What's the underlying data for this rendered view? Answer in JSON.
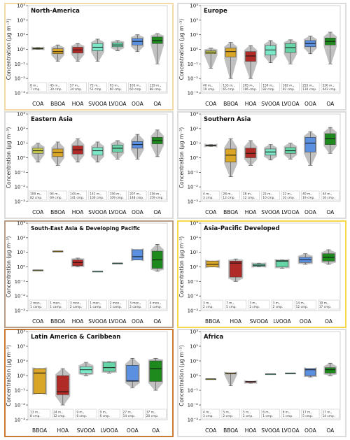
{
  "chart_data": [
    {
      "type": "box",
      "title": "North-America",
      "frame_color": "#f2d9a6",
      "ylabel": "Concentration (μg m⁻³)",
      "yscale": "log",
      "ylim": [
        0.001,
        1000
      ],
      "yticks": [
        "10⁻³",
        "10⁻²",
        "10⁻¹",
        "10⁰",
        "10¹",
        "10²",
        "10³"
      ],
      "categories": [
        "COA",
        "BBOA",
        "HOA",
        "SVOOA",
        "LVOOA",
        "OOA",
        "OA"
      ],
      "boxes": [
        {
          "cat": "COA",
          "min": 1.0,
          "q1": 1.05,
          "median": 1.1,
          "q3": 1.25,
          "max": 1.35,
          "note1": "8 m.,",
          "note2": "7 cmp."
        },
        {
          "cat": "BBOA",
          "min": 0.15,
          "q1": 0.5,
          "median": 0.7,
          "q3": 1.1,
          "max": 2.0,
          "note1": "45 m.,",
          "note2": "30 cmp."
        },
        {
          "cat": "HOA",
          "min": 0.15,
          "q1": 0.55,
          "median": 0.9,
          "q3": 1.4,
          "max": 2.5,
          "note1": "57 m.,",
          "note2": "34 cmp."
        },
        {
          "cat": "SVOOA",
          "min": 0.15,
          "q1": 0.8,
          "median": 1.4,
          "q3": 2.5,
          "max": 5.0,
          "note1": "72 m.,",
          "note2": "51 cmp."
        },
        {
          "cat": "LVOOA",
          "min": 0.8,
          "q1": 1.5,
          "median": 2.0,
          "q3": 2.8,
          "max": 4.0,
          "note1": "93 m.,",
          "note2": "60 cmp."
        },
        {
          "cat": "OOA",
          "min": 0.7,
          "q1": 2.0,
          "median": 3.5,
          "q3": 5.5,
          "max": 10.0,
          "note1": "103 m.,",
          "note2": "60 cmp."
        },
        {
          "cat": "OA",
          "min": 0.1,
          "q1": 2.5,
          "median": 4.0,
          "q3": 7.0,
          "max": 12.0,
          "note1": "119 m.,",
          "note2": "88 cmp."
        }
      ]
    },
    {
      "type": "box",
      "title": "Europe",
      "frame_color": "#dcdcdc",
      "ylabel": "Concentration (μg m⁻³)",
      "yscale": "log",
      "ylim": [
        0.001,
        1000
      ],
      "yticks": [
        "10⁻³",
        "10⁻²",
        "10⁻¹",
        "10⁰",
        "10¹",
        "10²",
        "10³"
      ],
      "categories": [
        "COA",
        "BBOA",
        "HOA",
        "SVOOA",
        "LVOOA",
        "OOA",
        "OA"
      ],
      "boxes": [
        {
          "cat": "COA",
          "min": 0.05,
          "q1": 0.5,
          "median": 0.65,
          "q3": 0.8,
          "max": 1.2,
          "note1": "40 m.,",
          "note2": "19 cmp."
        },
        {
          "cat": "BBOA",
          "min": 0.01,
          "q1": 0.3,
          "median": 0.7,
          "q3": 1.2,
          "max": 3.0,
          "note1": "133 m.,",
          "note2": "65 cmp."
        },
        {
          "cat": "HOA",
          "min": 0.01,
          "q1": 0.15,
          "median": 0.35,
          "q3": 0.7,
          "max": 1.8,
          "note1": "205 m.,",
          "note2": "106 cmp."
        },
        {
          "cat": "SVOOA",
          "min": 0.12,
          "q1": 0.4,
          "median": 0.9,
          "q3": 1.8,
          "max": 4.0,
          "note1": "159 m.,",
          "note2": "82 cmp."
        },
        {
          "cat": "LVOOA",
          "min": 0.1,
          "q1": 0.6,
          "median": 1.3,
          "q3": 2.5,
          "max": 4.5,
          "note1": "182 m.,",
          "note2": "92 cmp."
        },
        {
          "cat": "OOA",
          "min": 0.5,
          "q1": 1.5,
          "median": 2.5,
          "q3": 4.0,
          "max": 8.0,
          "note1": "255 m.,",
          "note2": "130 cmp."
        },
        {
          "cat": "OA",
          "min": 0.1,
          "q1": 2.0,
          "median": 3.5,
          "q3": 6.0,
          "max": 15.0,
          "note1": "526 m.,",
          "note2": "443 cmp."
        }
      ]
    },
    {
      "type": "box",
      "title": "Eastern Asia",
      "frame_color": "#dcdcdc",
      "ylabel": "Concentration (μg m⁻³)",
      "yscale": "log",
      "ylim": [
        0.001,
        1000
      ],
      "yticks": [
        "10⁻³",
        "10⁻²",
        "10⁻¹",
        "10⁰",
        "10¹",
        "10²",
        "10³"
      ],
      "categories": [
        "COA",
        "BBOA",
        "HOA",
        "SVOOA",
        "LVOOA",
        "OOA",
        "OA"
      ],
      "boxes": [
        {
          "cat": "COA",
          "min": 0.5,
          "q1": 2.0,
          "median": 3.0,
          "q3": 4.5,
          "max": 10.0,
          "note1": "109 m.,",
          "note2": "82 cmp."
        },
        {
          "cat": "BBOA",
          "min": 0.3,
          "q1": 1.2,
          "median": 2.3,
          "q3": 4.0,
          "max": 12.0,
          "note1": "94 m.,",
          "note2": "69 cmp."
        },
        {
          "cat": "HOA",
          "min": 0.5,
          "q1": 1.8,
          "median": 3.5,
          "q3": 6.5,
          "max": 20.0,
          "note1": "143 m.,",
          "note2": "141 cmp."
        },
        {
          "cat": "SVOOA",
          "min": 0.5,
          "q1": 1.5,
          "median": 3.0,
          "q3": 5.0,
          "max": 12.0,
          "note1": "141 m.,",
          "note2": "100 cmp."
        },
        {
          "cat": "LVOOA",
          "min": 0.8,
          "q1": 2.5,
          "median": 4.5,
          "q3": 7.5,
          "max": 15.0,
          "note1": "156 m.,",
          "note2": "109 cmp."
        },
        {
          "cat": "OOA",
          "min": 0.8,
          "q1": 4.5,
          "median": 8.0,
          "q3": 13.0,
          "max": 40.0,
          "note1": "207 m.,",
          "note2": "148 cmp."
        },
        {
          "cat": "OA",
          "min": 1.2,
          "q1": 9.0,
          "median": 15.0,
          "q3": 25.0,
          "max": 80.0,
          "note1": "216 m.,",
          "note2": "159 cmp."
        }
      ]
    },
    {
      "type": "box",
      "title": "Southern Asia",
      "frame_color": "#dcdcdc",
      "ylabel": "Concentration (μg m⁻³)",
      "yscale": "log",
      "ylim": [
        0.001,
        1000
      ],
      "yticks": [
        "10⁻³",
        "10⁻²",
        "10⁻¹",
        "10⁰",
        "10¹",
        "10²",
        "10³"
      ],
      "categories": [
        "COA",
        "BBOA",
        "HOA",
        "SVOOA",
        "LVOOA",
        "OOA",
        "OA"
      ],
      "boxes": [
        {
          "cat": "COA",
          "min": 6.0,
          "q1": 6.5,
          "median": 7.0,
          "q3": 7.5,
          "max": 8.0,
          "note1": "4 m.,",
          "note2": "3 cmp."
        },
        {
          "cat": "BBOA",
          "min": 0.05,
          "q1": 0.5,
          "median": 1.5,
          "q3": 4.0,
          "max": 20.0,
          "note1": "28 m.,",
          "note2": "12 cmp."
        },
        {
          "cat": "HOA",
          "min": 0.3,
          "q1": 1.0,
          "median": 2.0,
          "q3": 4.5,
          "max": 15.0,
          "note1": "28 m.,",
          "note2": "12 cmp."
        },
        {
          "cat": "SVOOA",
          "min": 0.7,
          "q1": 1.5,
          "median": 2.5,
          "q3": 4.0,
          "max": 8.0,
          "note1": "22 m.,",
          "note2": "10 cmp."
        },
        {
          "cat": "LVOOA",
          "min": 0.8,
          "q1": 2.0,
          "median": 3.0,
          "q3": 5.0,
          "max": 10.0,
          "note1": "22 m.,",
          "note2": "10 cmp."
        },
        {
          "cat": "OOA",
          "min": 0.3,
          "q1": 2.5,
          "median": 10.0,
          "q3": 25.0,
          "max": 60.0,
          "note1": "40 m.,",
          "note2": "19 cmp."
        },
        {
          "cat": "OA",
          "min": 2.0,
          "q1": 8.0,
          "median": 20.0,
          "q3": 45.0,
          "max": 120.0,
          "note1": "44 m.,",
          "note2": "16 cmp."
        }
      ]
    },
    {
      "type": "box",
      "title": "South-East Asia & Developing Pacific",
      "frame_color": "#b89e88",
      "ylabel": "Concentration (μg m⁻³)",
      "yscale": "log",
      "ylim": [
        0.001,
        1000
      ],
      "yticks": [
        "10⁻³",
        "10⁻²",
        "10⁻¹",
        "10⁰",
        "10¹",
        "10²",
        "10³"
      ],
      "categories": [
        "COA",
        "BBOA",
        "HOA",
        "SVOOA",
        "LVOOA",
        "OOA",
        "OA"
      ],
      "boxes": [
        {
          "cat": "COA",
          "min": 0.6,
          "q1": 0.6,
          "median": 0.6,
          "q3": 0.6,
          "max": 0.6,
          "note1": "2 mon.,",
          "note2": "1 camp."
        },
        {
          "cat": "BBOA",
          "min": 12.0,
          "q1": 12.0,
          "median": 12.0,
          "q3": 12.0,
          "max": 12.0,
          "note1": "1 mon.,",
          "note2": "1 camp."
        },
        {
          "cat": "HOA",
          "min": 1.0,
          "q1": 1.2,
          "median": 2.0,
          "q3": 3.0,
          "max": 4.0,
          "note1": "3 mon.,",
          "note2": "2 camp."
        },
        {
          "cat": "SVOOA",
          "min": 0.5,
          "q1": 0.5,
          "median": 0.5,
          "q3": 0.5,
          "max": 0.5,
          "note1": "1 mon.,",
          "note2": "1 camp."
        },
        {
          "cat": "LVOOA",
          "min": 1.8,
          "q1": 1.8,
          "median": 1.8,
          "q3": 1.8,
          "max": 1.8,
          "note1": "2 mon.,",
          "note2": "1 camp."
        },
        {
          "cat": "OOA",
          "min": 3.0,
          "q1": 3.0,
          "median": 5.0,
          "q3": 15.0,
          "max": 15.0,
          "note1": "3 mon.,",
          "note2": "2 camp."
        },
        {
          "cat": "OA",
          "min": 0.5,
          "q1": 0.8,
          "median": 3.0,
          "q3": 12.0,
          "max": 35.0,
          "note1": "4 mon.,",
          "note2": "3 camp."
        }
      ]
    },
    {
      "type": "box",
      "title": "Asia-Pacific Developed",
      "frame_color": "#f5d94a",
      "ylabel": "Concentration (μg m⁻³)",
      "yscale": "log",
      "ylim": [
        0.001,
        1000
      ],
      "yticks": [
        "10⁻³",
        "10⁻²",
        "10⁻¹",
        "10⁰",
        "10¹",
        "10²",
        "10³"
      ],
      "categories": [
        "BBOA",
        "HOA",
        "SVOOA",
        "LVOOA",
        "OOA",
        "OA"
      ],
      "boxes": [
        {
          "cat": "BBOA",
          "min": 1.0,
          "q1": 1.0,
          "median": 1.5,
          "q3": 2.5,
          "max": 2.5,
          "note1": "3 m.,",
          "note2": "2 cmp."
        },
        {
          "cat": "HOA",
          "min": 0.1,
          "q1": 0.2,
          "median": 1.8,
          "q3": 2.5,
          "max": 3.5,
          "note1": "7 m.,",
          "note2": "5 cmp."
        },
        {
          "cat": "SVOOA",
          "min": 1.0,
          "q1": 1.1,
          "median": 1.3,
          "q3": 1.6,
          "max": 1.8,
          "note1": "3 m.,",
          "note2": "2 cmp."
        },
        {
          "cat": "LVOOA",
          "min": 0.8,
          "q1": 1.0,
          "median": 2.5,
          "q3": 2.8,
          "max": 3.0,
          "note1": "3 m.,",
          "note2": "2 cmp."
        },
        {
          "cat": "OOA",
          "min": 1.5,
          "q1": 2.0,
          "median": 3.0,
          "q3": 4.5,
          "max": 8.0,
          "note1": "14 m.,",
          "note2": "12 cmp."
        },
        {
          "cat": "OA",
          "min": 1.5,
          "q1": 2.5,
          "median": 4.5,
          "q3": 8.0,
          "max": 15.0,
          "note1": "19 m.,",
          "note2": "17 cmp."
        }
      ]
    },
    {
      "type": "box",
      "title": "Latin America & Caribbean",
      "frame_color": "#c97a35",
      "ylabel": "Concentration (μg m⁻³)",
      "yscale": "log",
      "ylim": [
        0.001,
        1000
      ],
      "yticks": [
        "10⁻³",
        "10⁻²",
        "10⁻¹",
        "10⁰",
        "10¹",
        "10²",
        "10³"
      ],
      "categories": [
        "BBOA",
        "HOA",
        "SVOOA",
        "LVOOA",
        "OOA",
        "OA"
      ],
      "boxes": [
        {
          "cat": "BBOA",
          "min": 0.06,
          "q1": 0.06,
          "median": 1.5,
          "q3": 3.0,
          "max": 3.0,
          "note1": "13 m.,",
          "note2": "8 cmp."
        },
        {
          "cat": "HOA",
          "min": 0.01,
          "q1": 0.05,
          "median": 0.08,
          "q3": 1.0,
          "max": 3.0,
          "note1": "24 m.,",
          "note2": "12 cmp."
        },
        {
          "cat": "SVOOA",
          "min": 1.0,
          "q1": 1.5,
          "median": 2.5,
          "q3": 4.0,
          "max": 8.0,
          "note1": "9 m.,",
          "note2": "6 cmp."
        },
        {
          "cat": "LVOOA",
          "min": 1.5,
          "q1": 2.0,
          "median": 3.5,
          "q3": 8.0,
          "max": 9.0,
          "note1": "9 m.,",
          "note2": "6 cmp."
        },
        {
          "cat": "OOA",
          "min": 0.15,
          "q1": 0.4,
          "median": 0.45,
          "q3": 5.0,
          "max": 15.0,
          "note1": "27 m.,",
          "note2": "14 cmp."
        },
        {
          "cat": "OA",
          "min": 0.1,
          "q1": 0.4,
          "median": 3.0,
          "q3": 10.0,
          "max": 15.0,
          "note1": "37 m.,",
          "note2": "20 cmp."
        }
      ]
    },
    {
      "type": "box",
      "title": "Africa",
      "frame_color": "#dcdcdc",
      "ylabel": "Concentration (μg m⁻³)",
      "yscale": "log",
      "ylim": [
        0.001,
        1000
      ],
      "yticks": [
        "10⁻³",
        "10⁻²",
        "10⁻¹",
        "10⁰",
        "10¹",
        "10²",
        "10³"
      ],
      "categories": [
        "COA",
        "BBOA",
        "HOA",
        "SVOOA",
        "LVOOA",
        "OOA",
        "OA"
      ],
      "boxes": [
        {
          "cat": "COA",
          "min": 0.6,
          "q1": 0.6,
          "median": 0.6,
          "q3": 0.6,
          "max": 0.6,
          "note1": "4 m.,",
          "note2": "3 cmp."
        },
        {
          "cat": "BBOA",
          "min": 0.2,
          "q1": 1.5,
          "median": 1.5,
          "q3": 1.5,
          "max": 1.5,
          "note1": "5 m.,",
          "note2": "2 cmp."
        },
        {
          "cat": "HOA",
          "min": 0.3,
          "q1": 0.35,
          "median": 0.4,
          "q3": 0.4,
          "max": 0.4,
          "note1": "5 m.,",
          "note2": "2 cmp."
        },
        {
          "cat": "SVOOA",
          "min": 1.3,
          "q1": 1.3,
          "median": 1.3,
          "q3": 1.3,
          "max": 1.3,
          "note1": "6 m.,",
          "note2": "1 cmp."
        },
        {
          "cat": "LVOOA",
          "min": 1.5,
          "q1": 1.5,
          "median": 1.5,
          "q3": 1.5,
          "max": 1.5,
          "note1": "6 m.,",
          "note2": "1 cmp."
        },
        {
          "cat": "OOA",
          "min": 0.8,
          "q1": 1.0,
          "median": 2.5,
          "q3": 3.0,
          "max": 3.0,
          "note1": "17 m.,",
          "note2": "5 cmp."
        },
        {
          "cat": "OA",
          "min": 1.0,
          "q1": 1.5,
          "median": 2.5,
          "q3": 3.5,
          "max": 7.0,
          "note1": "17 m.,",
          "note2": "14 cmp."
        }
      ]
    }
  ],
  "colors": {
    "COA": "#c7c94e",
    "BBOA": "#d9a628",
    "HOA": "#b02a28",
    "SVOOA": "#7de8c7",
    "LVOOA": "#66d4a6",
    "OOA": "#5b8fe0",
    "OA": "#1e8a1e",
    "violin": "#b5b5b5",
    "median": "#111111"
  }
}
